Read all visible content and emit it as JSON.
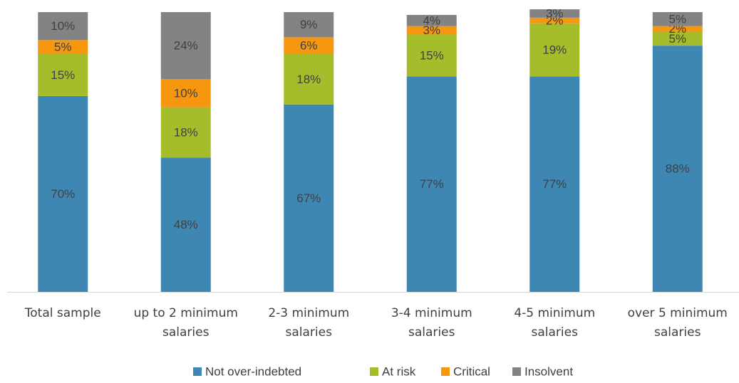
{
  "chart_data": {
    "type": "bar",
    "stacked": true,
    "categories": [
      "Total sample",
      "up to 2 minimum salaries",
      "2-3 minimum salaries",
      "3-4 minimum salaries",
      "4-5 minimum salaries",
      "over 5 minimum salaries"
    ],
    "series": [
      {
        "name": "Not over-indebted",
        "color": "#3e87b3",
        "values": [
          70,
          48,
          67,
          77,
          77,
          88
        ],
        "value_labels": [
          "70%",
          "48%",
          "67%",
          "77%",
          "77%",
          "88%"
        ]
      },
      {
        "name": "At risk",
        "color": "#a5bd2a",
        "values": [
          15,
          18,
          18,
          15,
          19,
          5
        ],
        "value_labels": [
          "15%",
          "18%",
          "18%",
          "15%",
          "19%",
          "5%"
        ]
      },
      {
        "name": "Critical",
        "color": "#f7960f",
        "values": [
          5,
          10,
          6,
          3,
          2,
          2
        ],
        "value_labels": [
          "5%",
          "10%",
          "6%",
          "3%",
          "2%",
          "2%"
        ]
      },
      {
        "name": "Insolvent",
        "color": "#838383",
        "values": [
          10,
          24,
          9,
          4,
          3,
          5
        ],
        "value_labels": [
          "10%",
          "24%",
          "9%",
          "4%",
          "3%",
          "5%"
        ]
      }
    ],
    "ylim": [
      0,
      100
    ],
    "legend": "bottom"
  }
}
